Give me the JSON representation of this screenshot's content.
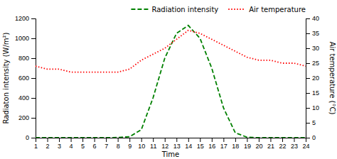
{
  "chart_data": {
    "type": "line",
    "xlabel": "Time",
    "ylabel": "Radiaton intensity (W/m²)",
    "y2label": "Air temperature (°C)",
    "x": [
      1,
      2,
      3,
      4,
      5,
      6,
      7,
      8,
      9,
      10,
      11,
      12,
      13,
      14,
      15,
      16,
      17,
      18,
      19,
      20,
      21,
      22,
      23,
      24
    ],
    "xlim": [
      1,
      24
    ],
    "xticks": [
      1,
      2,
      3,
      4,
      5,
      6,
      7,
      8,
      9,
      10,
      11,
      12,
      13,
      14,
      15,
      16,
      17,
      18,
      19,
      20,
      21,
      22,
      23,
      24
    ],
    "ylim": [
      0,
      1200
    ],
    "yticks": [
      0,
      200,
      400,
      600,
      800,
      1000,
      1200
    ],
    "y2lim": [
      0,
      40
    ],
    "y2ticks": [
      0,
      5,
      10,
      15,
      20,
      25,
      30,
      35,
      40
    ],
    "legend": "upper right",
    "grid": false,
    "series": [
      {
        "name": "Radiation intensity",
        "color": "#008000",
        "line_style": "dashed",
        "values": [
          0,
          0,
          0,
          0,
          0,
          0,
          0,
          2,
          10,
          80,
          400,
          800,
          1050,
          1130,
          1000,
          700,
          300,
          50,
          5,
          0,
          0,
          0,
          0,
          0
        ]
      },
      {
        "name": "Air temperature",
        "color": "#ff0000",
        "line_style": "dotted",
        "axis": "y2",
        "values": [
          24,
          23,
          23,
          22,
          22,
          22,
          22,
          22,
          23,
          26,
          28,
          30,
          33,
          36,
          35,
          33,
          31,
          29,
          27,
          26,
          26,
          25,
          25,
          24
        ]
      }
    ]
  }
}
